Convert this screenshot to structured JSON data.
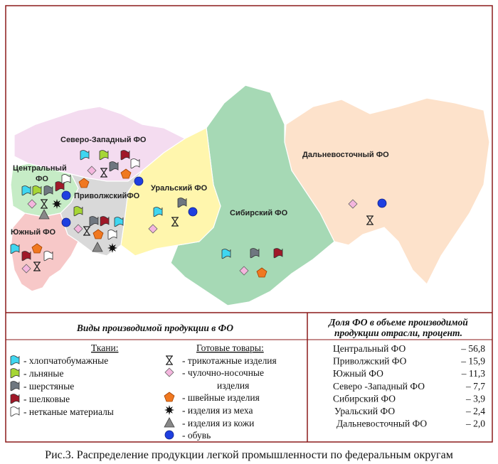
{
  "map": {
    "labels": {
      "north_west": "Северо-Западный ФО",
      "central_1": "Центральный",
      "central_2": "ФО",
      "volga": "ПриволжскийФО",
      "ural": "Уральский ФО",
      "siberia": "Сибирский ФО",
      "far_east": "Дальневосточный ФО",
      "south": "Южный ФО"
    }
  },
  "legend": {
    "title": "Виды производимой продукции в ФО",
    "fabrics": {
      "header": "Ткани:",
      "items": [
        "- хлопчатобумажные",
        "- льняные",
        "- шерстяные",
        "- шелковые",
        "- нетканые материалы"
      ]
    },
    "goods": {
      "header": "Готовые товары:",
      "items": [
        "- трикотажные изделия",
        "- чулочно-носочные",
        "изделия",
        "- швейные изделия",
        "- изделия из меха",
        "- изделия из кожи",
        "- обувь"
      ]
    }
  },
  "share": {
    "title_1": "Доля ФО в объеме  производимой",
    "title_2": "продукции отрасли, процент.",
    "rows": [
      {
        "name": "Центральный ФО",
        "value": "–  56,8"
      },
      {
        "name": "Приволжский ФО",
        "value": "– 15,9"
      },
      {
        "name": "Южный ФО",
        "value": "– 11,3"
      },
      {
        "name": "Северо -Западный ФО",
        "value": "–  7,7"
      },
      {
        "name": "Сибирский ФО",
        "value": "–  3,9"
      },
      {
        "name": "Уральский ФО",
        "value": "–  2,4"
      },
      {
        "name": "Дальневосточный ФО",
        "value": "–  2,0"
      }
    ]
  },
  "caption": "Рис.3. Распределение продукции легкой промышленности по федеральным округам"
}
